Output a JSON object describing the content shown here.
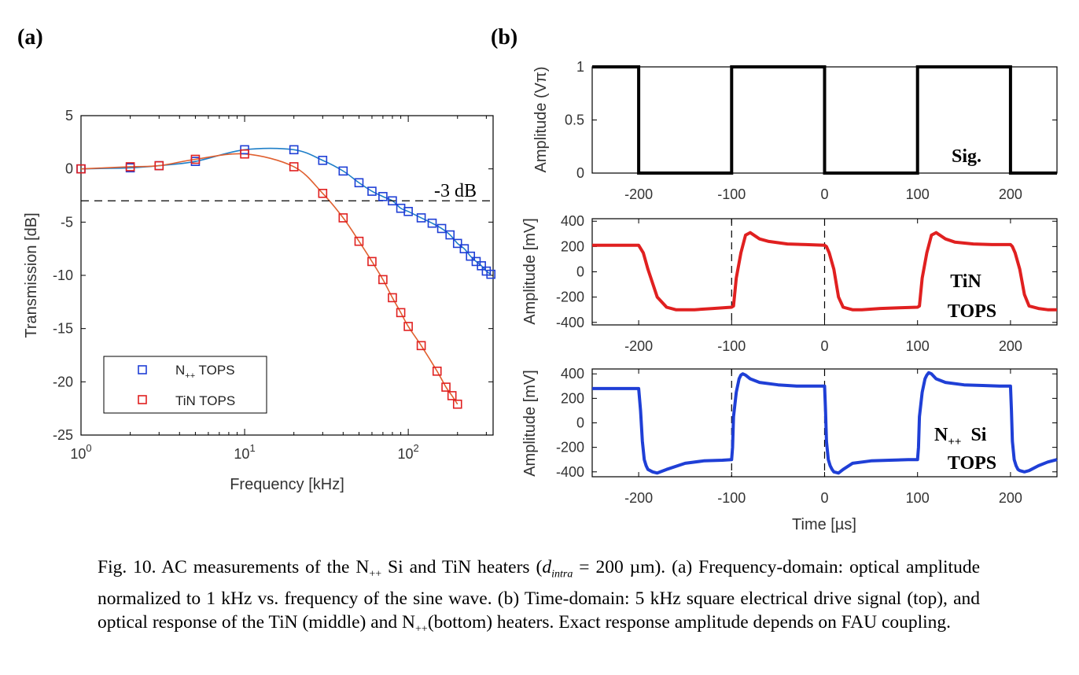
{
  "panel_a": {
    "label": "(a)",
    "threshold_label": "-3 dB",
    "legend": {
      "n_prefix": "N",
      "n_sub": "++",
      "n_suffix": " TOPS",
      "tin": "TiN TOPS"
    }
  },
  "panel_b": {
    "label": "(b)",
    "top_annotation": "Sig.",
    "mid_annotation": [
      "TiN",
      "TOPS"
    ],
    "bot_annotation": {
      "n_prefix": "N",
      "n_sub": "++",
      "n_suffix": "  Si",
      "line2": "TOPS"
    }
  },
  "caption": {
    "p1": "Fig. 10. AC measurements of the N",
    "sub1": "++",
    "p2": " Si and TiN heaters (",
    "p3": "d",
    "sub2": "intra",
    "p4": " = 200 µm). (a) Frequency-domain: optical amplitude normalized to 1 kHz vs. frequency of the sine wave. (b) Time-domain: 5 kHz square electrical drive signal (top), and optical response of the TiN (middle) and N",
    "sub3": "++",
    "p5": "(bottom) heaters. Exact response amplitude depends on FAU coupling."
  },
  "colors": {
    "n_series": "#1f3fd6",
    "tin_series": "#e02020",
    "n_fit": "#1f7fc8",
    "tin_fit": "#e06030"
  },
  "chart_data": [
    {
      "type": "scatter",
      "xlabel": "Frequency [kHz]",
      "ylabel": "Transmission [dB]",
      "x_scale": "log",
      "xlim": [
        1,
        330
      ],
      "ylim": [
        -25,
        5
      ],
      "xticks": [
        1,
        10,
        100
      ],
      "yticks": [
        5,
        0,
        -5,
        -10,
        -15,
        -20,
        -25
      ],
      "reference_line": -3,
      "legend_position": "bottom-left",
      "series": [
        {
          "name": "N++ TOPS",
          "x": [
            1,
            2,
            3,
            5,
            10,
            20,
            30,
            40,
            50,
            60,
            70,
            80,
            90,
            100,
            120,
            140,
            160,
            180,
            200,
            220,
            240,
            260,
            280,
            300,
            320
          ],
          "y": [
            0,
            0.1,
            0.3,
            0.7,
            1.8,
            1.8,
            0.8,
            -0.2,
            -1.3,
            -2.1,
            -2.6,
            -3.0,
            -3.7,
            -4.0,
            -4.6,
            -5.1,
            -5.6,
            -6.2,
            -7.0,
            -7.5,
            -8.2,
            -8.7,
            -9.1,
            -9.6,
            -9.9
          ]
        },
        {
          "name": "TiN TOPS",
          "x": [
            1,
            2,
            3,
            5,
            10,
            20,
            30,
            40,
            50,
            60,
            70,
            80,
            90,
            100,
            120,
            150,
            170,
            185,
            200
          ],
          "y": [
            0,
            0.2,
            0.3,
            0.9,
            1.4,
            0.2,
            -2.3,
            -4.6,
            -6.8,
            -8.7,
            -10.4,
            -12.1,
            -13.5,
            -14.8,
            -16.6,
            -19.0,
            -20.5,
            -21.3,
            -22.1
          ]
        }
      ]
    },
    {
      "type": "line",
      "ylabel": "Amplitude (Vπ)",
      "xlim": [
        -250,
        250
      ],
      "ylim": [
        0,
        1
      ],
      "xticks": [
        -200,
        -100,
        0,
        100,
        200
      ],
      "yticks": [
        0,
        0.5,
        1
      ],
      "series": [
        {
          "x": [
            -250,
            -200,
            -200,
            -100,
            -100,
            0,
            0,
            100,
            100,
            200,
            200,
            250
          ],
          "y": [
            1,
            1,
            0,
            0,
            1,
            1,
            0,
            0,
            1,
            1,
            0,
            0
          ]
        }
      ]
    },
    {
      "type": "line",
      "ylabel": "Amplitude [mV]",
      "xlim": [
        -250,
        250
      ],
      "ylim": [
        -420,
        420
      ],
      "xticks": [
        -200,
        -100,
        0,
        100,
        200
      ],
      "yticks": [
        400,
        200,
        0,
        -200,
        -400
      ],
      "series": [
        {
          "x": [
            -250,
            -200,
            -195,
            -190,
            -180,
            -170,
            -160,
            -140,
            -120,
            -100,
            -98,
            -95,
            -90,
            -85,
            -80,
            -70,
            -60,
            -40,
            -20,
            0,
            2,
            5,
            10,
            15,
            20,
            30,
            40,
            60,
            80,
            100,
            102,
            105,
            110,
            115,
            120,
            130,
            140,
            160,
            180,
            200,
            202,
            205,
            210,
            215,
            220,
            230,
            240,
            250
          ],
          "y": [
            210,
            210,
            150,
            20,
            -200,
            -280,
            -300,
            -300,
            -290,
            -280,
            -270,
            -50,
            150,
            290,
            310,
            260,
            240,
            220,
            215,
            210,
            200,
            150,
            20,
            -200,
            -280,
            -300,
            -300,
            -290,
            -285,
            -280,
            -270,
            -50,
            150,
            290,
            310,
            260,
            235,
            220,
            215,
            215,
            200,
            150,
            20,
            -180,
            -270,
            -290,
            -300,
            -300
          ]
        }
      ]
    },
    {
      "type": "line",
      "xlabel": "Time [µs]",
      "ylabel": "Amplitude [mV]",
      "xlim": [
        -250,
        250
      ],
      "ylim": [
        -440,
        440
      ],
      "xticks": [
        -200,
        -100,
        0,
        100,
        200
      ],
      "yticks": [
        400,
        200,
        0,
        -200,
        -400
      ],
      "series": [
        {
          "x": [
            -250,
            -200,
            -198,
            -196,
            -194,
            -192,
            -190,
            -185,
            -180,
            -170,
            -150,
            -130,
            -110,
            -100,
            -99,
            -98,
            -95,
            -92,
            -90,
            -88,
            -85,
            -80,
            -70,
            -50,
            -30,
            -10,
            0,
            1,
            2,
            4,
            6,
            8,
            10,
            15,
            20,
            30,
            50,
            70,
            90,
            100,
            101,
            102,
            105,
            108,
            110,
            112,
            115,
            120,
            130,
            150,
            170,
            190,
            200,
            201,
            202,
            204,
            206,
            208,
            210,
            215,
            220,
            230,
            240,
            250
          ],
          "y": [
            280,
            280,
            100,
            -150,
            -300,
            -350,
            -380,
            -400,
            -410,
            -380,
            -330,
            -310,
            -305,
            -300,
            -200,
            50,
            250,
            360,
            390,
            400,
            390,
            360,
            330,
            310,
            300,
            300,
            300,
            100,
            -150,
            -300,
            -350,
            -380,
            -400,
            -410,
            -380,
            -330,
            -310,
            -305,
            -300,
            -300,
            -200,
            50,
            250,
            360,
            390,
            410,
            400,
            360,
            330,
            310,
            305,
            300,
            300,
            100,
            -150,
            -300,
            -350,
            -380,
            -390,
            -400,
            -390,
            -350,
            -320,
            -300
          ]
        }
      ]
    }
  ]
}
